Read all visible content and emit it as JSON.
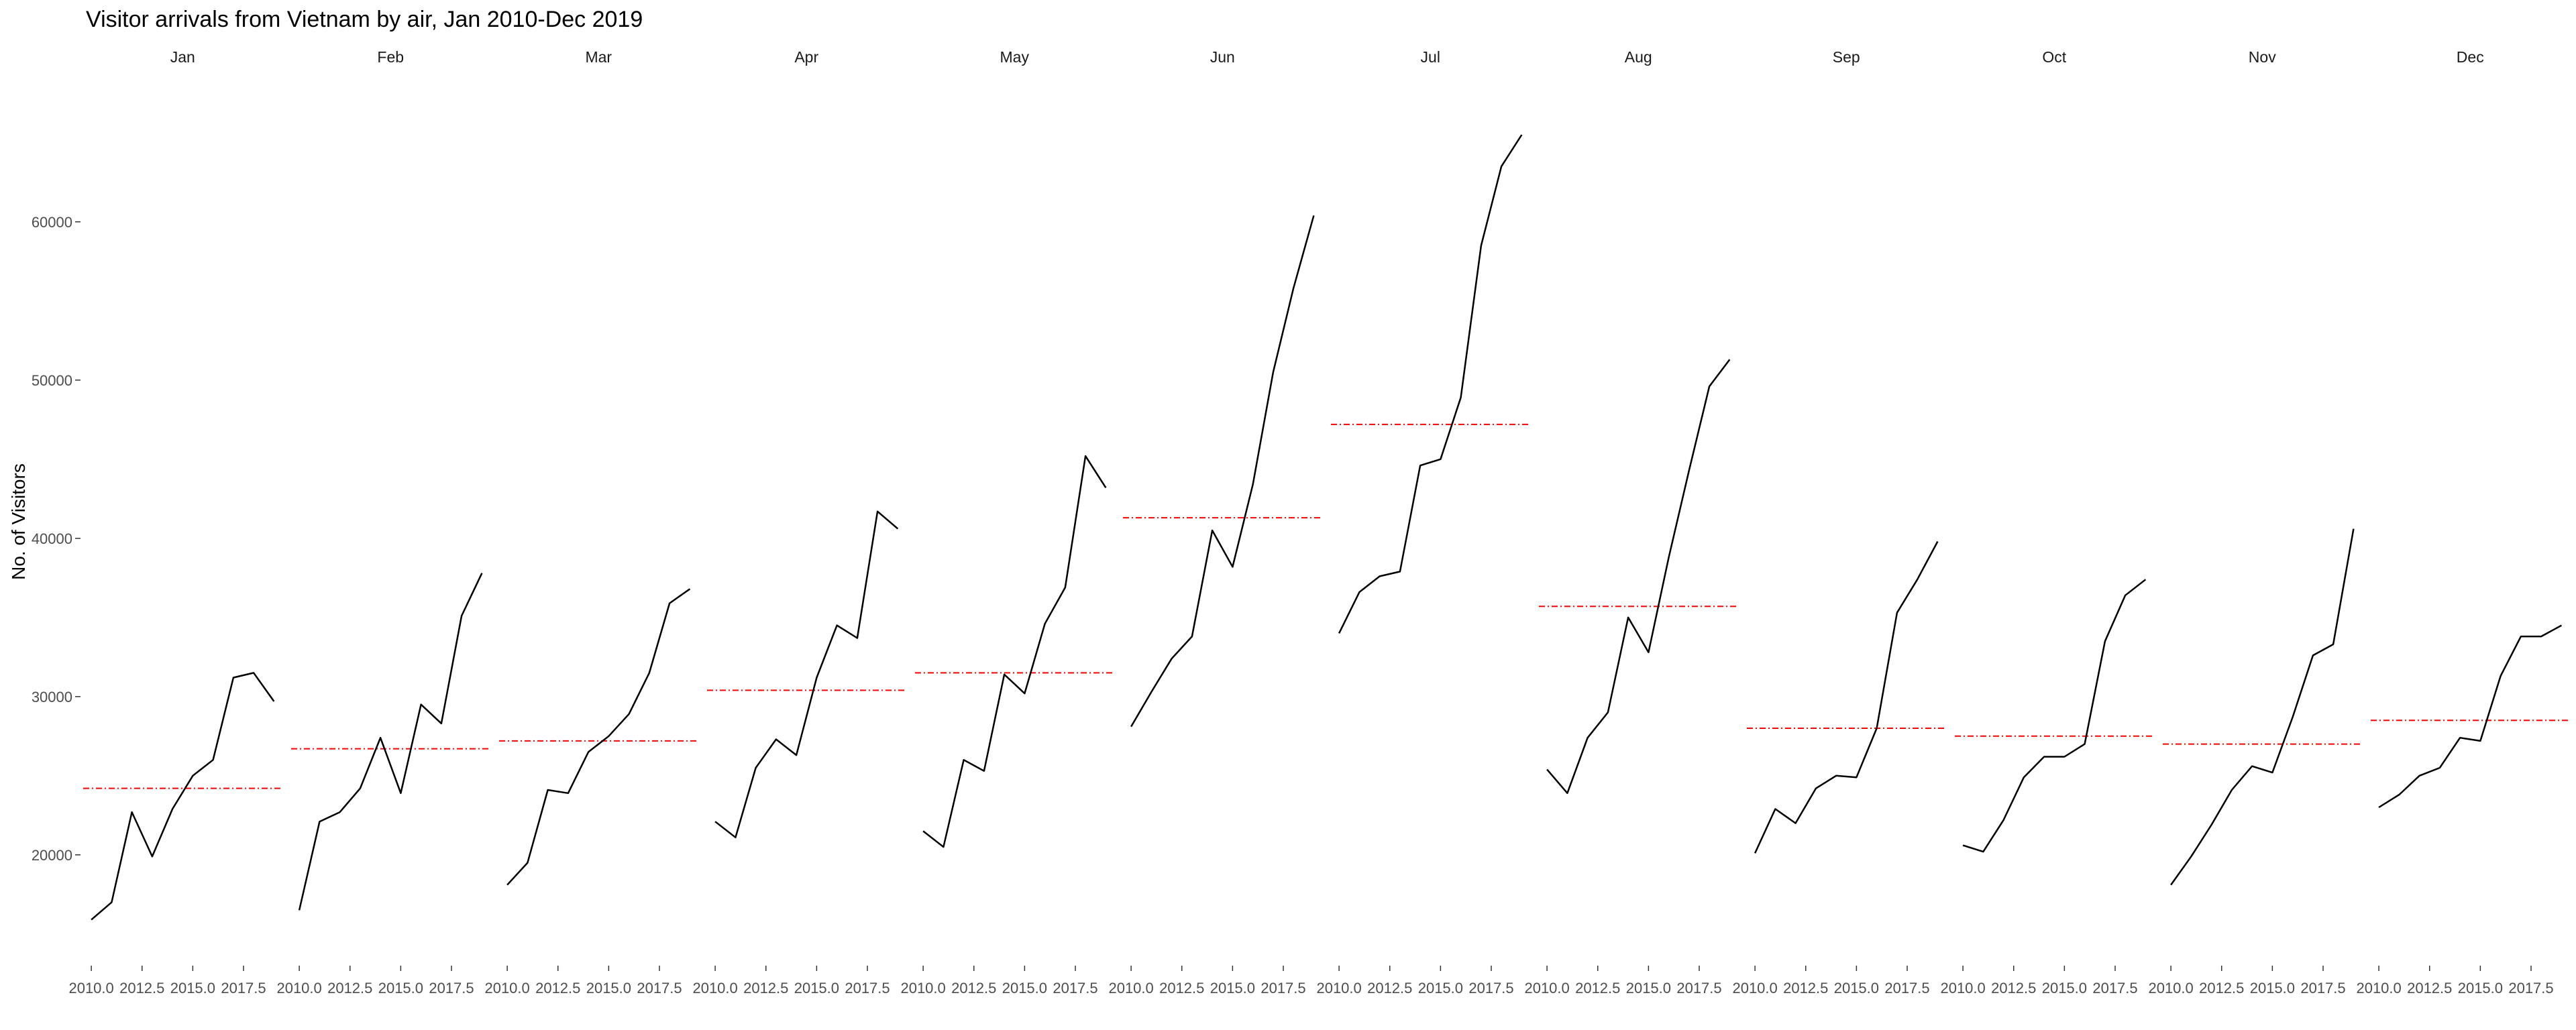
{
  "chart_data": {
    "type": "line",
    "title": "Visitor arrivals from Vietnam by air, Jan 2010-Dec 2019",
    "xlabel": "",
    "ylabel": "No. of Visitors",
    "ylim": [
      13000,
      68000
    ],
    "xlim": [
      2009.5,
      2019.5
    ],
    "x": [
      2010,
      2011,
      2012,
      2013,
      2014,
      2015,
      2016,
      2017,
      2018,
      2019
    ],
    "x_ticks": [
      2010.0,
      2012.5,
      2015.0,
      2017.5
    ],
    "x_tick_labels": [
      "2010.0",
      "2012.5",
      "2015.0",
      "2017.5"
    ],
    "y_ticks": [
      20000,
      30000,
      40000,
      50000,
      60000
    ],
    "y_tick_labels": [
      "20000",
      "30000",
      "40000",
      "50000",
      "60000"
    ],
    "grid": false,
    "legend": "none",
    "line_color": "#000000",
    "mean_line_color": "#ff0000",
    "facets": [
      {
        "month": "Jan",
        "values": [
          15900,
          17000,
          22700,
          19900,
          22900,
          25000,
          26000,
          31200,
          31500,
          29700
        ],
        "mean": 24200
      },
      {
        "month": "Feb",
        "values": [
          16500,
          22100,
          22700,
          24200,
          27400,
          23900,
          29500,
          28300,
          35100,
          37800
        ],
        "mean": 26700
      },
      {
        "month": "Mar",
        "values": [
          18100,
          19500,
          24100,
          23900,
          26500,
          27500,
          28900,
          31500,
          35900,
          36800
        ],
        "mean": 27200
      },
      {
        "month": "Apr",
        "values": [
          22100,
          21100,
          25500,
          27300,
          26300,
          31200,
          34500,
          33700,
          41700,
          40600
        ],
        "mean": 30400
      },
      {
        "month": "May",
        "values": [
          21500,
          20500,
          26000,
          25300,
          31400,
          30200,
          34600,
          36900,
          45200,
          43200
        ],
        "mean": 31500
      },
      {
        "month": "Jun",
        "values": [
          28100,
          30300,
          32400,
          33800,
          40500,
          38200,
          43400,
          50500,
          55800,
          60400
        ],
        "mean": 41300
      },
      {
        "month": "Jul",
        "values": [
          34000,
          36600,
          37600,
          37900,
          44600,
          45000,
          48900,
          58500,
          63500,
          65500
        ],
        "mean": 47200
      },
      {
        "month": "Aug",
        "values": [
          25400,
          23900,
          27400,
          29000,
          35000,
          32800,
          38800,
          44300,
          49600,
          51300
        ],
        "mean": 35700
      },
      {
        "month": "Sep",
        "values": [
          20100,
          22900,
          22000,
          24200,
          25000,
          24900,
          28000,
          35300,
          37400,
          39800
        ],
        "mean": 28000
      },
      {
        "month": "Oct",
        "values": [
          20600,
          20200,
          22200,
          24900,
          26200,
          26200,
          27000,
          33500,
          36400,
          37400
        ],
        "mean": 27500
      },
      {
        "month": "Nov",
        "values": [
          18100,
          19900,
          21900,
          24100,
          25600,
          25200,
          28700,
          32600,
          33300,
          40600
        ],
        "mean": 27000
      },
      {
        "month": "Dec",
        "values": [
          23000,
          23800,
          25000,
          25500,
          27400,
          27200,
          31300,
          33800,
          33800,
          34500
        ],
        "mean": 28500
      }
    ]
  }
}
